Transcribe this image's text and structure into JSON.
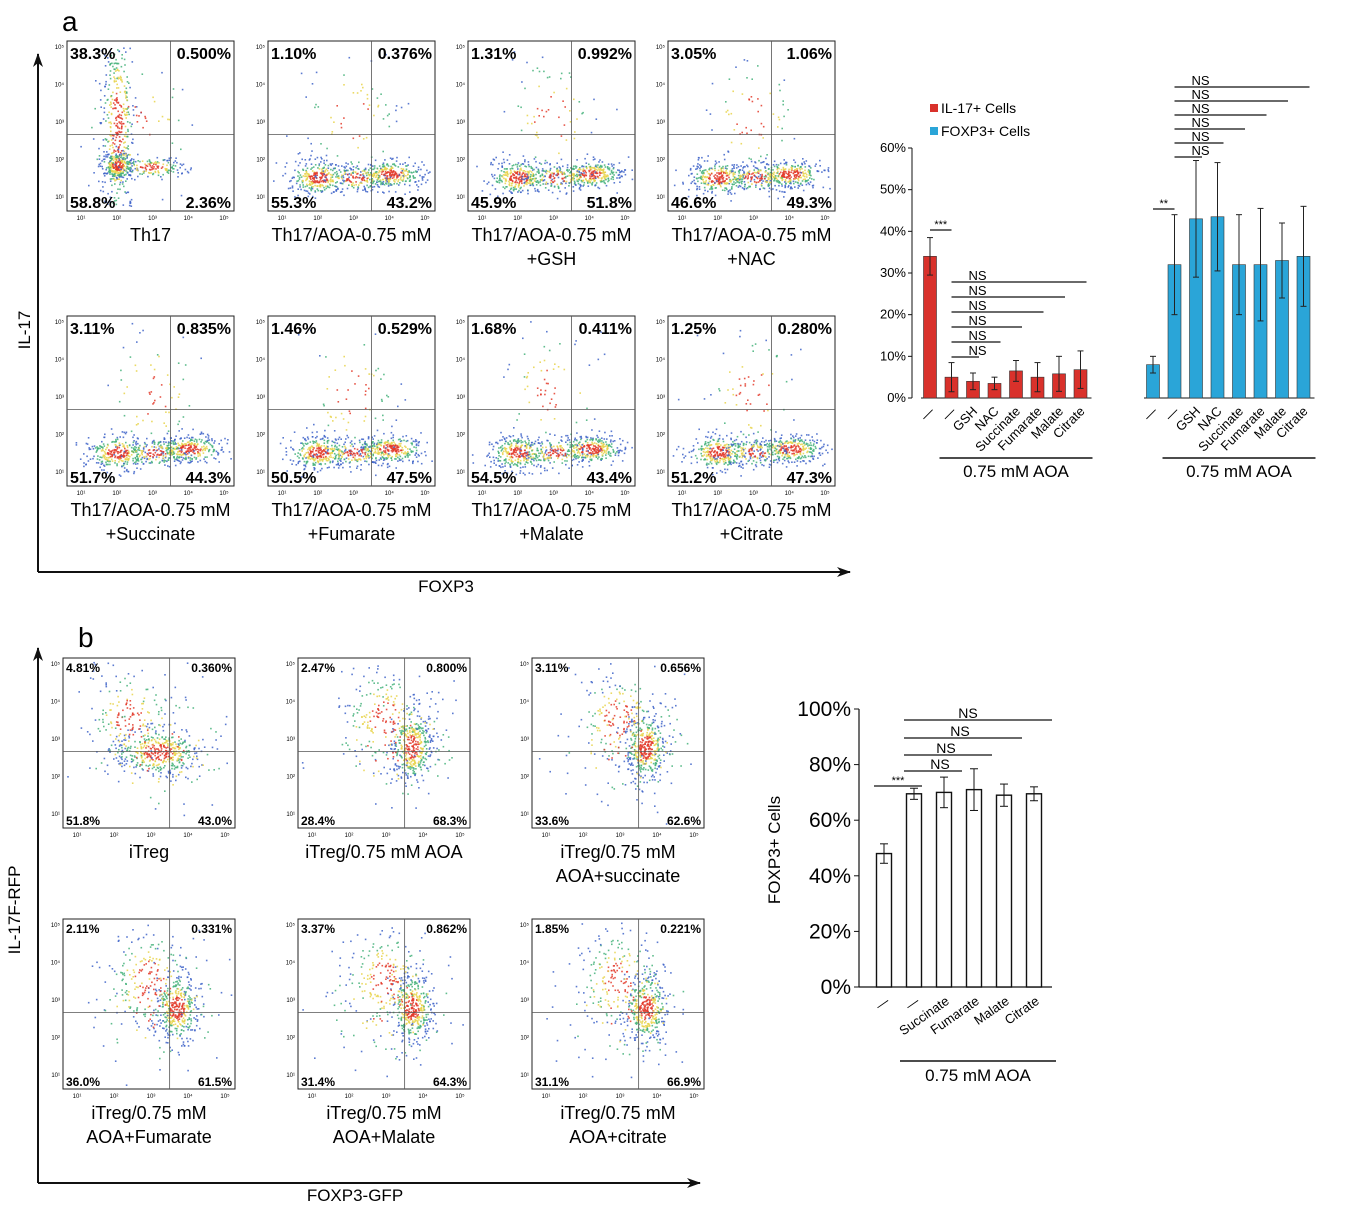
{
  "panel_a": {
    "letter": "a",
    "y_axis_label": "IL-17",
    "x_axis_label": "FOXP3",
    "plots": [
      {
        "q": [
          "38.3%",
          "0.500%",
          "58.8%",
          "2.36%"
        ],
        "caption": [
          "Th17"
        ],
        "pop": "th17"
      },
      {
        "q": [
          "1.10%",
          "0.376%",
          "55.3%",
          "43.2%"
        ],
        "caption": [
          "Th17/AOA-0.75 mM"
        ],
        "pop": "dual"
      },
      {
        "q": [
          "1.31%",
          "0.992%",
          "45.9%",
          "51.8%"
        ],
        "caption": [
          "Th17/AOA-0.75 mM",
          "+GSH"
        ],
        "pop": "dual"
      },
      {
        "q": [
          "3.05%",
          "1.06%",
          "46.6%",
          "49.3%"
        ],
        "caption": [
          "Th17/AOA-0.75 mM",
          "+NAC"
        ],
        "pop": "dual"
      },
      {
        "q": [
          "3.11%",
          "0.835%",
          "51.7%",
          "44.3%"
        ],
        "caption": [
          "Th17/AOA-0.75 mM",
          "+Succinate"
        ],
        "pop": "dual"
      },
      {
        "q": [
          "1.46%",
          "0.529%",
          "50.5%",
          "47.5%"
        ],
        "caption": [
          "Th17/AOA-0.75 mM",
          "+Fumarate"
        ],
        "pop": "dual"
      },
      {
        "q": [
          "1.68%",
          "0.411%",
          "54.5%",
          "43.4%"
        ],
        "caption": [
          "Th17/AOA-0.75 mM",
          "+Malate"
        ],
        "pop": "dual"
      },
      {
        "q": [
          "1.25%",
          "0.280%",
          "51.2%",
          "47.3%"
        ],
        "caption": [
          "Th17/AOA-0.75 mM",
          "+Citrate"
        ],
        "pop": "dual"
      }
    ]
  },
  "panel_b": {
    "letter": "b",
    "y_axis_label": "IL-17F-RFP",
    "x_axis_label": "FOXP3-GFP",
    "plots": [
      {
        "q": [
          "4.81%",
          "0.360%",
          "51.8%",
          "43.0%"
        ],
        "caption": [
          "iTreg"
        ],
        "pop": "treg"
      },
      {
        "q": [
          "2.47%",
          "0.800%",
          "28.4%",
          "68.3%"
        ],
        "caption": [
          "iTreg/0.75 mM AOA"
        ],
        "pop": "treg2"
      },
      {
        "q": [
          "3.11%",
          "0.656%",
          "33.6%",
          "62.6%"
        ],
        "caption": [
          "iTreg/0.75 mM",
          "AOA+succinate"
        ],
        "pop": "treg2"
      },
      {
        "q": [
          "2.11%",
          "0.331%",
          "36.0%",
          "61.5%"
        ],
        "caption": [
          "iTreg/0.75 mM",
          "AOA+Fumarate"
        ],
        "pop": "treg2"
      },
      {
        "q": [
          "3.37%",
          "0.862%",
          "31.4%",
          "64.3%"
        ],
        "caption": [
          "iTreg/0.75 mM",
          "AOA+Malate"
        ],
        "pop": "treg2"
      },
      {
        "q": [
          "1.85%",
          "0.221%",
          "31.1%",
          "66.9%"
        ],
        "caption": [
          "iTreg/0.75 mM",
          "AOA+citrate"
        ],
        "pop": "treg2"
      }
    ]
  },
  "flow_axis_ticks": [
    "10¹",
    "10²",
    "10³",
    "10⁴",
    "10⁵"
  ],
  "chart_data": [
    {
      "type": "bar",
      "yticks": [
        "0%",
        "10%",
        "20%",
        "30%",
        "40%",
        "50%",
        "60%"
      ],
      "ylim": [
        0,
        60
      ],
      "legend": [
        "IL-17+ Cells",
        "FOXP3+ Cells"
      ],
      "legend_position": "top-left",
      "groups": [
        {
          "series": "IL-17+ Cells",
          "color": "#d9312b",
          "categories": [
            "—",
            "—",
            "GSH",
            "NAC",
            "Succinate",
            "Fumarate",
            "Malate",
            "Citrate"
          ],
          "values": [
            34,
            5,
            4,
            3.5,
            6.5,
            5,
            5.8,
            6.8
          ],
          "errors": [
            4.5,
            3.5,
            2,
            1.5,
            2.5,
            3.5,
            4.2,
            4.5
          ],
          "group_label": "0.75 mM AOA",
          "significance": [
            {
              "from": 0,
              "to": 1,
              "text": "***"
            },
            {
              "from": 1,
              "to": 2,
              "text": "NS"
            },
            {
              "from": 1,
              "to": 3,
              "text": "NS"
            },
            {
              "from": 1,
              "to": 4,
              "text": "NS"
            },
            {
              "from": 1,
              "to": 5,
              "text": "NS"
            },
            {
              "from": 1,
              "to": 6,
              "text": "NS"
            },
            {
              "from": 1,
              "to": 7,
              "text": "NS"
            }
          ]
        },
        {
          "series": "FOXP3+ Cells",
          "color": "#2aa5d8",
          "categories": [
            "—",
            "—",
            "GSH",
            "NAC",
            "Succinate",
            "Fumarate",
            "Malate",
            "Citrate"
          ],
          "values": [
            8,
            32,
            43,
            43.5,
            32,
            32,
            33,
            34
          ],
          "errors": [
            2,
            12,
            14,
            13,
            12,
            13.5,
            9,
            12
          ],
          "group_label": "0.75 mM AOA",
          "significance": [
            {
              "from": 0,
              "to": 1,
              "text": "**"
            },
            {
              "from": 1,
              "to": 2,
              "text": "NS"
            },
            {
              "from": 1,
              "to": 3,
              "text": "NS"
            },
            {
              "from": 1,
              "to": 4,
              "text": "NS"
            },
            {
              "from": 1,
              "to": 5,
              "text": "NS"
            },
            {
              "from": 1,
              "to": 6,
              "text": "NS"
            },
            {
              "from": 1,
              "to": 7,
              "text": "NS"
            }
          ]
        }
      ]
    },
    {
      "type": "bar",
      "ylabel": "FOXP3+ Cells",
      "yticks": [
        "0%",
        "20%",
        "40%",
        "60%",
        "80%",
        "100%"
      ],
      "ylim": [
        0,
        100
      ],
      "categories": [
        "—",
        "—",
        "Succinate",
        "Fumarate",
        "Malate",
        "Citrate"
      ],
      "values": [
        48,
        69.5,
        70,
        71,
        69,
        69.5
      ],
      "errors": [
        3.5,
        2,
        5.5,
        7.5,
        4,
        2.5
      ],
      "color": "#ffffff",
      "group_label": "0.75 mM AOA",
      "significance": [
        {
          "from": 0,
          "to": 1,
          "text": "***"
        },
        {
          "from": 1,
          "to": 2,
          "text": "NS"
        },
        {
          "from": 1,
          "to": 3,
          "text": "NS"
        },
        {
          "from": 1,
          "to": 4,
          "text": "NS"
        },
        {
          "from": 1,
          "to": 5,
          "text": "NS"
        }
      ]
    }
  ]
}
